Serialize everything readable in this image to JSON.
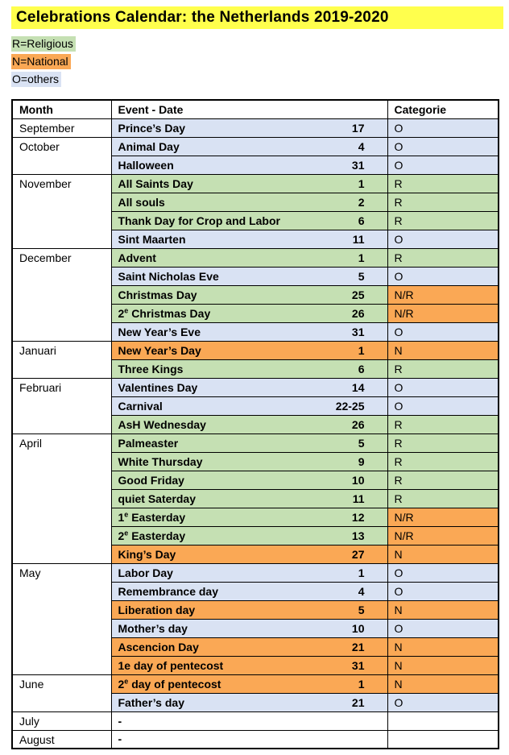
{
  "title": "Celebrations Calendar: the Netherlands 2019-2020",
  "colors": {
    "title_bg": "#FFFF4D",
    "religious": "#C5E0B3",
    "national": "#FAA855",
    "others": "#D9E2F3",
    "none": "#FFFFFF"
  },
  "legend": [
    {
      "label": "R=Religious",
      "bg": "religious"
    },
    {
      "label": "N=National",
      "bg": "national"
    },
    {
      "label": "O=others",
      "bg": "others"
    }
  ],
  "table": {
    "headers": [
      "Month",
      "Event - Date",
      "Categorie"
    ],
    "rows": [
      {
        "month": "September",
        "month_span": 1,
        "event_pre": "Prince’s Day",
        "event_sup": "",
        "event_post": "",
        "date": "17",
        "category": "O",
        "event_bg": "others",
        "cat_bg": "others"
      },
      {
        "month": "October",
        "month_span": 2,
        "event_pre": "Animal Day",
        "event_sup": "",
        "event_post": "",
        "date": "4",
        "category": "O",
        "event_bg": "others",
        "cat_bg": "others"
      },
      {
        "event_pre": "Halloween",
        "event_sup": "",
        "event_post": "",
        "date": "31",
        "category": "O",
        "event_bg": "others",
        "cat_bg": "others"
      },
      {
        "month": "November",
        "month_span": 4,
        "event_pre": "All Saints Day",
        "event_sup": "",
        "event_post": "",
        "date": "1",
        "category": "R",
        "event_bg": "religious",
        "cat_bg": "religious"
      },
      {
        "event_pre": "All souls",
        "event_sup": "",
        "event_post": "",
        "date": "2",
        "category": "R",
        "event_bg": "religious",
        "cat_bg": "religious"
      },
      {
        "event_pre": "Thank Day for Crop and Labor",
        "event_sup": "",
        "event_post": "",
        "date": "6",
        "category": "R",
        "event_bg": "religious",
        "cat_bg": "religious"
      },
      {
        "event_pre": "Sint Maarten",
        "event_sup": "",
        "event_post": "",
        "date": "11",
        "category": "O",
        "event_bg": "others",
        "cat_bg": "others"
      },
      {
        "month": "December",
        "month_span": 5,
        "event_pre": "Advent",
        "event_sup": "",
        "event_post": "",
        "date": "1",
        "category": "R",
        "event_bg": "religious",
        "cat_bg": "religious"
      },
      {
        "event_pre": "Saint Nicholas Eve",
        "event_sup": "",
        "event_post": "",
        "date": "5",
        "category": "O",
        "event_bg": "others",
        "cat_bg": "others"
      },
      {
        "event_pre": "Christmas Day",
        "event_sup": "",
        "event_post": "",
        "date": "25",
        "category": "N/R",
        "event_bg": "religious",
        "cat_bg": "national"
      },
      {
        "event_pre": "2",
        "event_sup": "e",
        "event_post": " Christmas Day",
        "date": "26",
        "category": "N/R",
        "event_bg": "religious",
        "cat_bg": "national"
      },
      {
        "event_pre": "New Year’s Eve",
        "event_sup": "",
        "event_post": "",
        "date": "31",
        "category": "O",
        "event_bg": "others",
        "cat_bg": "others"
      },
      {
        "month": "Januari",
        "month_span": 2,
        "event_pre": "New Year’s Day",
        "event_sup": "",
        "event_post": "",
        "date": "1",
        "category": "N",
        "event_bg": "national",
        "cat_bg": "national"
      },
      {
        "event_pre": "Three Kings",
        "event_sup": "",
        "event_post": "",
        "date": "6",
        "category": "R",
        "event_bg": "religious",
        "cat_bg": "religious"
      },
      {
        "month": "Februari",
        "month_span": 3,
        "event_pre": "Valentines Day",
        "event_sup": "",
        "event_post": "",
        "date": "14",
        "category": "O",
        "event_bg": "others",
        "cat_bg": "others"
      },
      {
        "event_pre": "Carnival",
        "event_sup": "",
        "event_post": "",
        "date": "22-25",
        "category": "O",
        "event_bg": "others",
        "cat_bg": "others"
      },
      {
        "event_pre": "AsH Wednesday",
        "event_sup": "",
        "event_post": "",
        "date": "26",
        "category": "R",
        "event_bg": "religious",
        "cat_bg": "religious"
      },
      {
        "month": "April",
        "month_span": 7,
        "event_pre": "Palmeaster",
        "event_sup": "",
        "event_post": "",
        "date": "5",
        "category": "R",
        "event_bg": "religious",
        "cat_bg": "religious"
      },
      {
        "event_pre": "White Thursday",
        "event_sup": "",
        "event_post": "",
        "date": "9",
        "category": "R",
        "event_bg": "religious",
        "cat_bg": "religious"
      },
      {
        "event_pre": "Good Friday",
        "event_sup": "",
        "event_post": "",
        "date": "10",
        "category": "R",
        "event_bg": "religious",
        "cat_bg": "religious"
      },
      {
        "event_pre": "quiet Saterday",
        "event_sup": "",
        "event_post": "",
        "date": "11",
        "category": "R",
        "event_bg": "religious",
        "cat_bg": "religious"
      },
      {
        "event_pre": "1",
        "event_sup": "e",
        "event_post": " Easterday",
        "date": "12",
        "category": "N/R",
        "event_bg": "religious",
        "cat_bg": "national"
      },
      {
        "event_pre": "2",
        "event_sup": "e",
        "event_post": " Easterday",
        "date": "13",
        "category": "N/R",
        "event_bg": "religious",
        "cat_bg": "national"
      },
      {
        "event_pre": "King’s Day",
        "event_sup": "",
        "event_post": "",
        "date": "27",
        "category": "N",
        "event_bg": "national",
        "cat_bg": "national"
      },
      {
        "month": "May",
        "month_span": 6,
        "event_pre": "Labor Day",
        "event_sup": "",
        "event_post": "",
        "date": "1",
        "category": "O",
        "event_bg": "others",
        "cat_bg": "others"
      },
      {
        "event_pre": "Remembrance day",
        "event_sup": "",
        "event_post": "",
        "date": "4",
        "category": "O",
        "event_bg": "others",
        "cat_bg": "others"
      },
      {
        "event_pre": "Liberation day",
        "event_sup": "",
        "event_post": "",
        "date": "5",
        "category": "N",
        "event_bg": "national",
        "cat_bg": "national"
      },
      {
        "event_pre": "Mother’s day",
        "event_sup": "",
        "event_post": "",
        "date": "10",
        "category": "O",
        "event_bg": "others",
        "cat_bg": "others"
      },
      {
        "event_pre": "Ascencion Day",
        "event_sup": "",
        "event_post": "",
        "date": "21",
        "category": "N",
        "event_bg": "national",
        "cat_bg": "national"
      },
      {
        "event_pre": "1e day of pentecost",
        "event_sup": "",
        "event_post": "",
        "date": "31",
        "category": "N",
        "event_bg": "national",
        "cat_bg": "national"
      },
      {
        "month": "June",
        "month_span": 2,
        "event_pre": "2",
        "event_sup": "e",
        "event_post": " day of pentecost",
        "date": "1",
        "category": "N",
        "event_bg": "national",
        "cat_bg": "national"
      },
      {
        "event_pre": "Father’s day",
        "event_sup": "",
        "event_post": "",
        "date": "21",
        "category": "O",
        "event_bg": "others",
        "cat_bg": "others"
      },
      {
        "month": "July",
        "month_span": 1,
        "event_pre": "-",
        "event_sup": "",
        "event_post": "",
        "date": "",
        "category": "",
        "event_bg": "none",
        "cat_bg": "none"
      },
      {
        "month": "August",
        "month_span": 1,
        "event_pre": "-",
        "event_sup": "",
        "event_post": "",
        "date": "",
        "category": "",
        "event_bg": "none",
        "cat_bg": "none"
      }
    ]
  }
}
